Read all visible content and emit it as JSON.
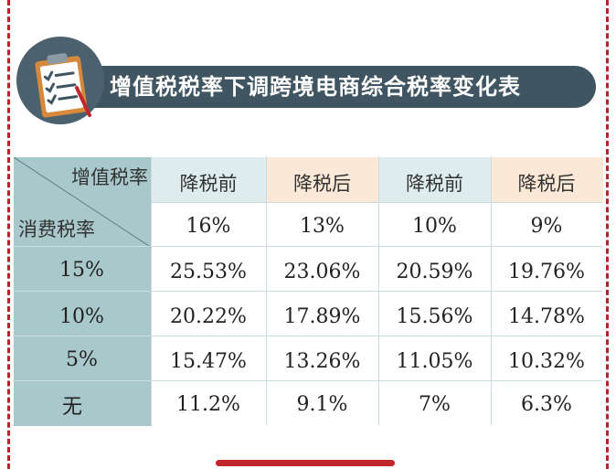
{
  "title": "增值税税率下调跨境电商综合税率变化表",
  "table": {
    "corner_top": "增值税率",
    "corner_bottom": "消费税率",
    "headers": [
      "降税前",
      "降税后",
      "降税前",
      "降税后"
    ],
    "vat_rates": [
      "16%",
      "13%",
      "10%",
      "9%"
    ],
    "rows": [
      {
        "label": "15%",
        "values": [
          "25.53%",
          "23.06%",
          "20.59%",
          "19.76%"
        ]
      },
      {
        "label": "10%",
        "values": [
          "20.22%",
          "17.89%",
          "15.56%",
          "14.78%"
        ]
      },
      {
        "label": "5%",
        "values": [
          "15.47%",
          "13.26%",
          "11.05%",
          "10.32%"
        ]
      },
      {
        "label": "无",
        "values": [
          "11.2%",
          "9.1%",
          "7%",
          "6.3%"
        ]
      }
    ]
  },
  "colors": {
    "accent_red": "#b5242a",
    "banner": "#3f5561",
    "label_column": "#a9c8cb",
    "header_blue": "#deecee",
    "header_peach": "#fbe8d7",
    "body_cell": "#ffffff"
  },
  "icons": [
    "clipboard-checklist-icon"
  ]
}
